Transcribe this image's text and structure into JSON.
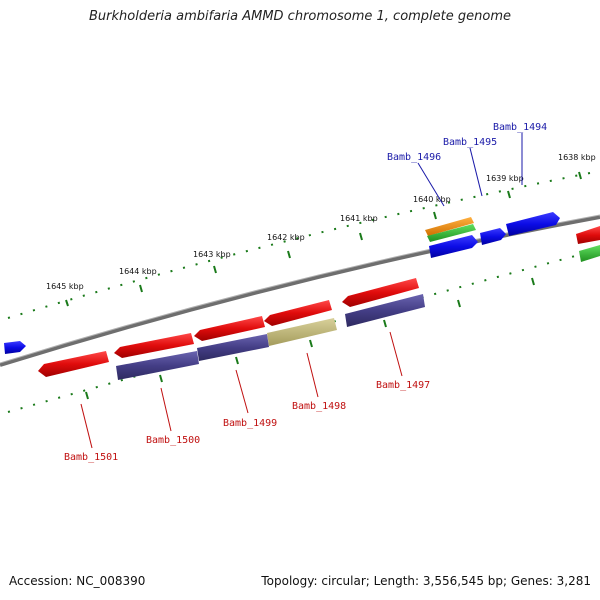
{
  "title": "Burkholderia ambifaria AMMD chromosome 1, complete genome",
  "footer": {
    "accession": "Accession: NC_008390",
    "summary": "Topology: circular; Length: 3,556,545 bp; Genes: 3,281"
  },
  "kbp_labels": [
    "1638 kbp",
    "1639 kbp",
    "1640 kbp",
    "1641 kbp",
    "1642 kbp",
    "1643 kbp",
    "1644 kbp",
    "1645 kbp"
  ],
  "genes_forward": [
    "Bamb_1494",
    "Bamb_1495",
    "Bamb_1496"
  ],
  "genes_reverse": [
    "Bamb_1497",
    "Bamb_1498",
    "Bamb_1499",
    "Bamb_1500",
    "Bamb_1501"
  ],
  "colors": {
    "backbone": "#808080",
    "ticks": "#1a7a1a",
    "forward_gene": "#1010e0",
    "reverse_gene": "#e01010",
    "cds_purple": "#4a4488",
    "cds_khaki": "#c0b878",
    "orange": "#f09020",
    "green": "#30c030"
  }
}
